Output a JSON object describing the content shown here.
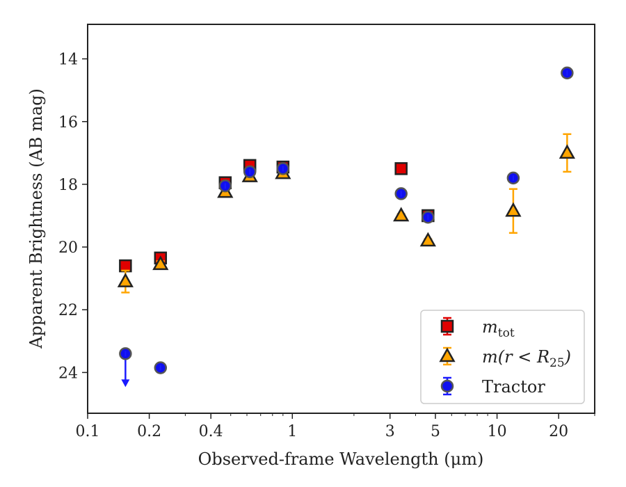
{
  "chart_data": {
    "type": "scatter",
    "xlabel": "Observed-frame Wavelength (μm)",
    "ylabel": "Apparent Brightness (AB mag)",
    "x_scale": "log",
    "xlim": [
      0.1,
      30
    ],
    "ylim": [
      25.3,
      12.9
    ],
    "y_inverted": true,
    "x_ticks": [
      0.1,
      0.2,
      0.4,
      1,
      3,
      5,
      10,
      20
    ],
    "x_tick_labels": [
      "0.1",
      "0.2",
      "0.4",
      "1",
      "3",
      "5",
      "10",
      "20"
    ],
    "y_ticks": [
      14,
      16,
      18,
      20,
      22,
      24
    ],
    "y_tick_labels": [
      "14",
      "16",
      "18",
      "20",
      "22",
      "24"
    ],
    "grid": false,
    "legend_position": "lower-right",
    "series": [
      {
        "name": "m_tot",
        "legend": {
          "main": "m",
          "sub": "tot",
          "rest": ""
        },
        "marker": "square",
        "color": "#e00000",
        "errcolor": "#e00000",
        "points": [
          {
            "x": 0.153,
            "y": 20.6,
            "err": 0.1
          },
          {
            "x": 0.227,
            "y": 20.35,
            "err": 0.1
          },
          {
            "x": 0.47,
            "y": 17.95,
            "err": 0.05
          },
          {
            "x": 0.62,
            "y": 17.4,
            "err": 0.05
          },
          {
            "x": 0.9,
            "y": 17.45,
            "err": 0.05
          },
          {
            "x": 3.4,
            "y": 17.5,
            "err": 0.05
          },
          {
            "x": 4.6,
            "y": 19.0,
            "err": 0.05
          }
        ]
      },
      {
        "name": "m(r<R_25)",
        "legend": {
          "main": "m(r < R",
          "sub": "25",
          "rest": ")"
        },
        "marker": "triangle",
        "color": "#ffa500",
        "errcolor": "#ffa500",
        "points": [
          {
            "x": 0.153,
            "y": 21.1,
            "err": 0.35
          },
          {
            "x": 0.227,
            "y": 20.55,
            "err": 0.1
          },
          {
            "x": 0.47,
            "y": 18.25,
            "err": 0.05
          },
          {
            "x": 0.62,
            "y": 17.75,
            "err": 0.05
          },
          {
            "x": 0.9,
            "y": 17.65,
            "err": 0.05
          },
          {
            "x": 3.4,
            "y": 19.0,
            "err": 0.05
          },
          {
            "x": 4.6,
            "y": 19.8,
            "err": 0.05
          },
          {
            "x": 12.0,
            "y": 18.85,
            "err": 0.7
          },
          {
            "x": 22.0,
            "y": 17.0,
            "err": 0.6
          }
        ]
      },
      {
        "name": "Tractor",
        "legend": {
          "main": "Tractor",
          "sub": "",
          "rest": ""
        },
        "marker": "circle",
        "color": "#1010ee",
        "errcolor": "#1a1aff",
        "points": [
          {
            "x": 0.153,
            "y": 23.4,
            "err": 0,
            "upper_limit": true
          },
          {
            "x": 0.227,
            "y": 23.85,
            "err": 0
          },
          {
            "x": 0.47,
            "y": 18.05,
            "err": 0
          },
          {
            "x": 0.62,
            "y": 17.6,
            "err": 0
          },
          {
            "x": 0.9,
            "y": 17.5,
            "err": 0
          },
          {
            "x": 3.4,
            "y": 18.3,
            "err": 0
          },
          {
            "x": 4.6,
            "y": 19.05,
            "err": 0
          },
          {
            "x": 12.0,
            "y": 17.8,
            "err": 0
          },
          {
            "x": 22.0,
            "y": 14.45,
            "err": 0
          }
        ]
      }
    ]
  }
}
